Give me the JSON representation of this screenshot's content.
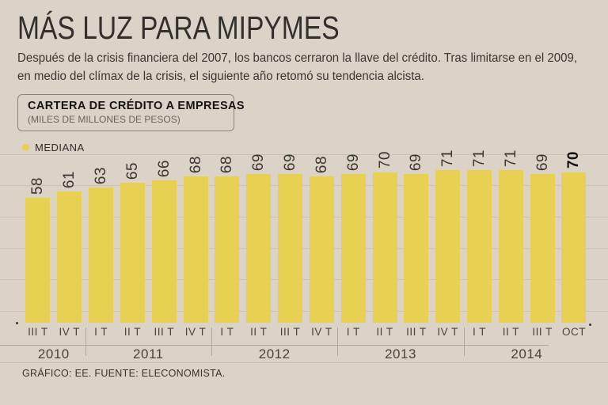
{
  "header": {
    "title": "MÁS LUZ PARA MIPYMES",
    "subtitle": "Después de la crisis financiera del 2007, los bancos cerraron la llave del crédito. Tras limitarse en el 2009, en medio del clímax de la crisis, el siguiente año retomó su tendencia alcista."
  },
  "box": {
    "title": "CARTERA DE CRÉDITO A EMPRESAS",
    "subtitle": "(MILES DE MILLONES DE PESOS)"
  },
  "legend": {
    "label": "MEDIANA"
  },
  "chart_data": {
    "type": "bar",
    "title": "CARTERA DE CRÉDITO A EMPRESAS",
    "unit": "MILES DE MILLONES DE PESOS",
    "series_name": "MEDIANA",
    "categories": [
      "III T",
      "IV T",
      "I T",
      "II T",
      "III T",
      "IV T",
      "I T",
      "II T",
      "III T",
      "IV T",
      "I T",
      "II T",
      "III T",
      "IV T",
      "I T",
      "II T",
      "III T",
      "OCT"
    ],
    "values": [
      58,
      61,
      63,
      65,
      66,
      68,
      68,
      69,
      69,
      68,
      69,
      70,
      69,
      71,
      71,
      71,
      69,
      70
    ],
    "year_groups": [
      {
        "year": "2010",
        "span": 2
      },
      {
        "year": "2011",
        "span": 4
      },
      {
        "year": "2012",
        "span": 4
      },
      {
        "year": "2013",
        "span": 4
      },
      {
        "year": "2014",
        "span": 4
      }
    ],
    "highlight_last_value": true,
    "bar_color": "#e8d053",
    "ylim": [
      0,
      75
    ],
    "grid": true,
    "legend_position": "top-left"
  },
  "footer": {
    "text": "GRÁFICO: EE. FUENTE: ELECONOMISTA."
  }
}
